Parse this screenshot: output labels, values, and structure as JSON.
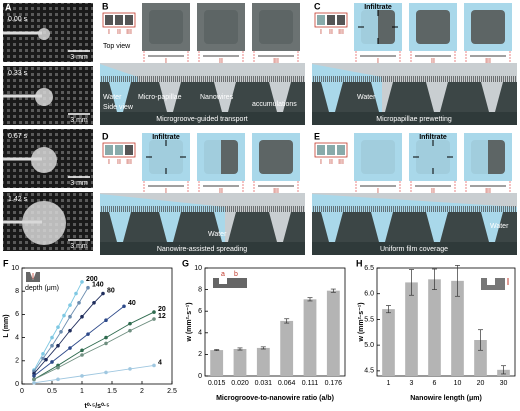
{
  "panels": {
    "A": {
      "label": "A",
      "frames": [
        {
          "time": "0.00 s",
          "scale": "3 mm"
        },
        {
          "time": "0.33 s",
          "scale": "3 mm"
        },
        {
          "time": "0.67 s",
          "scale": "3 mm"
        },
        {
          "time": "1.42 s",
          "scale": "3 mm"
        }
      ]
    },
    "B": {
      "label": "B",
      "zones": [
        "I",
        "II",
        "III"
      ],
      "top_view": "Top view",
      "side_view": "Side view",
      "water": "Water",
      "papillae": "Micro-papillae",
      "nanowires": "Nanowires",
      "accumulations": "accumulations",
      "caption": "Microgroove-guided transport"
    },
    "C": {
      "label": "C",
      "zones": [
        "I",
        "II",
        "III"
      ],
      "infiltrate": "Infiltrate",
      "water": "Water",
      "caption": "Micropapillae prewetting"
    },
    "D": {
      "label": "D",
      "zones": [
        "I",
        "II",
        "III"
      ],
      "infiltrate": "Infiltrate",
      "water": "Water",
      "caption": "Nanowire-assisted spreading"
    },
    "E": {
      "label": "E",
      "zones": [
        "I",
        "II",
        "III"
      ],
      "infiltrate": "Infiltrate",
      "water": "Water",
      "caption": "Uniform film coverage"
    }
  },
  "chart_data": [
    {
      "type": "scatter",
      "label": "F",
      "xlabel": "t⁰·⁵/s⁰·⁵",
      "ylabel": "L (mm)",
      "inset_label": "depth (μm)",
      "xlim": [
        0,
        2.5
      ],
      "xticks": [
        0,
        0.5,
        1,
        1.5,
        2,
        2.5
      ],
      "ylim": [
        0,
        10
      ],
      "yticks": [
        0,
        2,
        4,
        6,
        8,
        10
      ],
      "series": [
        {
          "name": "200",
          "color": "#7ec8e3",
          "x": [
            0.2,
            0.35,
            0.5,
            0.6,
            0.7,
            0.8,
            0.9,
            1.0
          ],
          "values": [
            1.2,
            2.6,
            4.0,
            4.9,
            5.9,
            6.8,
            7.8,
            8.8
          ]
        },
        {
          "name": "140",
          "color": "#6a8caf",
          "x": [
            0.2,
            0.35,
            0.5,
            0.65,
            0.8,
            0.95,
            1.1
          ],
          "values": [
            1.1,
            2.2,
            3.3,
            4.5,
            5.8,
            7.0,
            8.3
          ]
        },
        {
          "name": "80",
          "color": "#1f2d5c",
          "x": [
            0.2,
            0.4,
            0.6,
            0.8,
            1.0,
            1.2,
            1.35
          ],
          "values": [
            0.9,
            2.1,
            3.3,
            4.6,
            5.8,
            7.0,
            7.8
          ]
        },
        {
          "name": "40",
          "color": "#2e4a8a",
          "x": [
            0.2,
            0.5,
            0.8,
            1.1,
            1.4,
            1.7
          ],
          "values": [
            0.7,
            1.9,
            3.1,
            4.3,
            5.5,
            6.7
          ]
        },
        {
          "name": "20",
          "color": "#2f6b4f",
          "x": [
            0.2,
            0.6,
            1.0,
            1.4,
            1.8,
            2.2
          ],
          "values": [
            0.4,
            1.6,
            2.9,
            4.0,
            5.2,
            6.2
          ]
        },
        {
          "name": "12",
          "color": "#6f8f80",
          "x": [
            0.2,
            0.6,
            1.0,
            1.4,
            1.8,
            2.2
          ],
          "values": [
            0.4,
            1.4,
            2.5,
            3.5,
            4.6,
            5.6
          ]
        },
        {
          "name": "4",
          "color": "#9fc7e0",
          "x": [
            0.2,
            0.6,
            1.0,
            1.4,
            1.8,
            2.2
          ],
          "values": [
            0.1,
            0.4,
            0.7,
            1.0,
            1.3,
            1.6
          ]
        }
      ]
    },
    {
      "type": "bar",
      "label": "G",
      "xlabel": "Microgroove-to-nanowire ratio (a/b)",
      "ylabel": "w (mm²·s⁻¹)",
      "inset_labels": [
        "a",
        "b"
      ],
      "categories": [
        "0.015",
        "0.020",
        "0.031",
        "0.064",
        "0.111",
        "0.176"
      ],
      "values": [
        2.4,
        2.5,
        2.6,
        5.1,
        7.1,
        7.9
      ],
      "errors": [
        0.05,
        0.1,
        0.1,
        0.2,
        0.15,
        0.15
      ],
      "color": "#b4b4b4",
      "ylim": [
        0,
        10
      ],
      "yticks": [
        0,
        2,
        4,
        6,
        8,
        10
      ]
    },
    {
      "type": "bar",
      "label": "H",
      "xlabel": "Nanowire length (μm)",
      "ylabel": "w (mm²·s⁻¹)",
      "categories": [
        "1",
        "3",
        "6",
        "10",
        "20",
        "30"
      ],
      "values": [
        5.7,
        6.22,
        6.28,
        6.25,
        5.1,
        4.52
      ],
      "errors": [
        0.07,
        0.25,
        0.2,
        0.3,
        0.2,
        0.08
      ],
      "color": "#b4b4b4",
      "ylim": [
        4.4,
        6.5
      ],
      "yticks": [
        4.5,
        {
          "value": 5,
          "label": "5.0"
        },
        5.5,
        {
          "value": 6,
          "label": "6.0"
        },
        6.5
      ]
    }
  ]
}
